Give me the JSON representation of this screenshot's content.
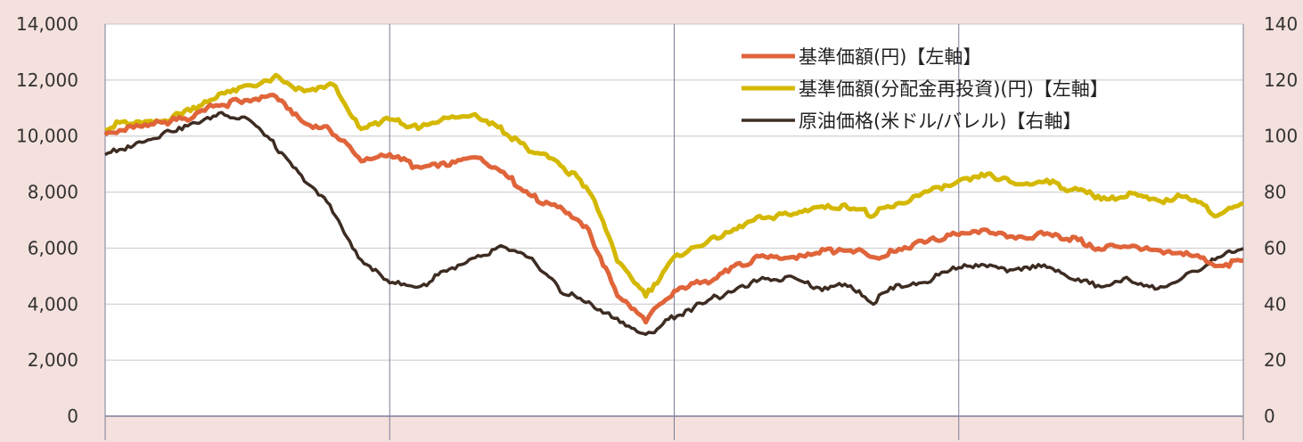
{
  "chart_data": {
    "type": "line",
    "left_axis": {
      "ylim": [
        0,
        14000
      ],
      "ticks": [
        0,
        2000,
        4000,
        6000,
        8000,
        10000,
        12000,
        14000
      ],
      "tick_labels": [
        "0",
        "2,000",
        "4,000",
        "6,000",
        "8,000",
        "10,000",
        "12,000",
        "14,000"
      ]
    },
    "right_axis": {
      "ylim": [
        0,
        140
      ],
      "ticks": [
        0,
        20,
        40,
        60,
        80,
        100,
        120,
        140
      ],
      "tick_labels": [
        "0",
        "20",
        "40",
        "60",
        "80",
        "100",
        "120",
        "140"
      ]
    },
    "x_divisions": 4,
    "grid": true,
    "legend_position": "top-right",
    "x": [
      0,
      5,
      10,
      15,
      20,
      25,
      30,
      35,
      40,
      45,
      50,
      55,
      60,
      65,
      70,
      75,
      80,
      85,
      90,
      95,
      100
    ],
    "series": [
      {
        "name": "基準価額(円)【左軸】",
        "axis": "left",
        "color": "#e0643a",
        "values": [
          10150,
          10300,
          10450,
          10700,
          11100,
          11300,
          11400,
          10400,
          10150,
          9200,
          9300,
          8900,
          9050,
          9300,
          8700,
          7800,
          7500,
          6600,
          4400,
          3500,
          4400
        ]
      },
      {
        "name": "基準価額(分配金再投資)(円)【左軸】",
        "axis": "left",
        "color": "#d4b800",
        "values": [
          10300,
          10500,
          10600,
          10900,
          11500,
          11800,
          12100,
          11500,
          11800,
          10200,
          10600,
          10250,
          10600,
          10800,
          10200,
          9500,
          9000,
          8100,
          5600,
          4300,
          5600
        ]
      },
      {
        "name": "原油価格(米ドル/バレル)【右軸】",
        "axis": "right",
        "color": "#3d2c22",
        "values": [
          93,
          97,
          101,
          104,
          108,
          106,
          96,
          85,
          74,
          55,
          48,
          46,
          52,
          56,
          60,
          56,
          45,
          40,
          34,
          28,
          36
        ]
      }
    ],
    "series_tail": [
      {
        "values": [
          4400,
          4800,
          5200,
          5700,
          5600,
          5900,
          6000,
          5700,
          5900,
          6300,
          6500,
          6700,
          6400,
          6500,
          6300,
          6000,
          6000,
          5800,
          5900,
          5400,
          5500
        ]
      },
      {
        "values": [
          5600,
          6100,
          6600,
          7100,
          7200,
          7400,
          7500,
          7200,
          7600,
          8100,
          8400,
          8700,
          8300,
          8400,
          8100,
          7800,
          7900,
          7600,
          7900,
          7200,
          7600
        ]
      },
      {
        "values": [
          36,
          40,
          45,
          48,
          50,
          46,
          47,
          41,
          47,
          49,
          53,
          54,
          52,
          54,
          49,
          46,
          49,
          45,
          50,
          56,
          60
        ]
      }
    ]
  }
}
